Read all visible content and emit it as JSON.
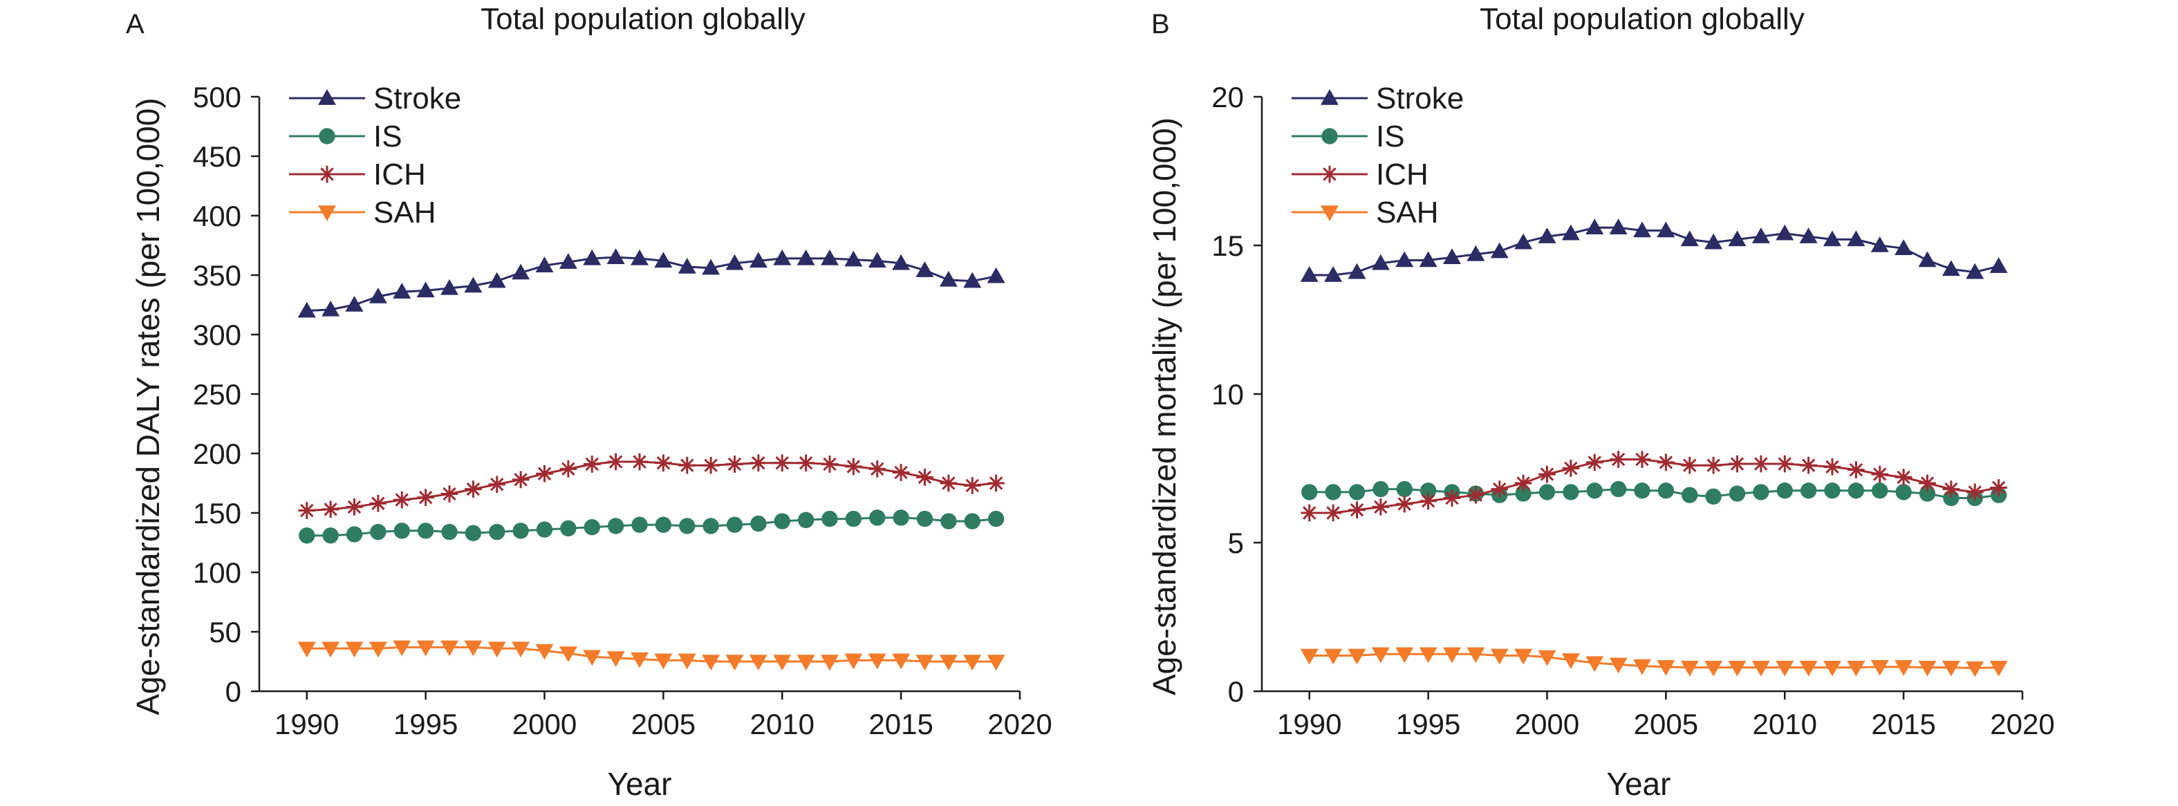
{
  "chart_data": [
    {
      "type": "line",
      "panel_label": "A",
      "title": "Total population globally",
      "xlabel": "Year",
      "ylabel": "Age-standardized DALY rates (per 100,000)",
      "xlim": [
        1988,
        2020
      ],
      "ylim": [
        0,
        500
      ],
      "xticks": [
        1990,
        1995,
        2000,
        2005,
        2010,
        2015,
        2020
      ],
      "yticks": [
        0,
        50,
        100,
        150,
        200,
        250,
        300,
        350,
        400,
        450,
        500
      ],
      "legend_position": "top-left",
      "grid": false,
      "x": [
        1990,
        1991,
        1992,
        1993,
        1994,
        1995,
        1996,
        1997,
        1998,
        1999,
        2000,
        2001,
        2002,
        2003,
        2004,
        2005,
        2006,
        2007,
        2008,
        2009,
        2010,
        2011,
        2012,
        2013,
        2014,
        2015,
        2016,
        2017,
        2018,
        2019
      ],
      "series": [
        {
          "name": "Stroke",
          "values": [
            320,
            321,
            325,
            332,
            336,
            337,
            339,
            341,
            345,
            352,
            358,
            361,
            364,
            365,
            364,
            362,
            357,
            356,
            360,
            362,
            364,
            364,
            364,
            363,
            362,
            360,
            354,
            346,
            345,
            349
          ]
        },
        {
          "name": "IS",
          "values": [
            131,
            131,
            132,
            134,
            135,
            135,
            134,
            133,
            134,
            135,
            136,
            137,
            138,
            139,
            140,
            140,
            139,
            139,
            140,
            141,
            143,
            144,
            145,
            145,
            146,
            146,
            145,
            143,
            143,
            145
          ]
        },
        {
          "name": "ICH",
          "values": [
            152,
            153,
            155,
            158,
            161,
            163,
            166,
            170,
            174,
            178,
            183,
            187,
            191,
            193,
            193,
            192,
            190,
            190,
            191,
            192,
            192,
            192,
            191,
            189,
            187,
            184,
            180,
            175,
            173,
            175
          ]
        },
        {
          "name": "SAH",
          "values": [
            36,
            36,
            36,
            36,
            37,
            37,
            37,
            37,
            36,
            36,
            34,
            32,
            29,
            28,
            27,
            26,
            26,
            25,
            25,
            25,
            25,
            25,
            25,
            26,
            26,
            26,
            25,
            25,
            25,
            25
          ]
        }
      ]
    },
    {
      "type": "line",
      "panel_label": "B",
      "title": "Total population globally",
      "xlabel": "Year",
      "ylabel": "Age-standardized mortality (per 100,000)",
      "xlim": [
        1988,
        2020
      ],
      "ylim": [
        0,
        20
      ],
      "xticks": [
        1990,
        1995,
        2000,
        2005,
        2010,
        2015,
        2020
      ],
      "yticks": [
        0,
        5,
        10,
        15,
        20
      ],
      "legend_position": "top-left",
      "grid": false,
      "x": [
        1990,
        1991,
        1992,
        1993,
        1994,
        1995,
        1996,
        1997,
        1998,
        1999,
        2000,
        2001,
        2002,
        2003,
        2004,
        2005,
        2006,
        2007,
        2008,
        2009,
        2010,
        2011,
        2012,
        2013,
        2014,
        2015,
        2016,
        2017,
        2018,
        2019
      ],
      "series": [
        {
          "name": "Stroke",
          "values": [
            14.0,
            14.0,
            14.1,
            14.4,
            14.5,
            14.5,
            14.6,
            14.7,
            14.8,
            15.1,
            15.3,
            15.4,
            15.6,
            15.6,
            15.5,
            15.5,
            15.2,
            15.1,
            15.2,
            15.3,
            15.4,
            15.3,
            15.2,
            15.2,
            15.0,
            14.9,
            14.5,
            14.2,
            14.1,
            14.3
          ]
        },
        {
          "name": "IS",
          "values": [
            6.7,
            6.7,
            6.7,
            6.8,
            6.8,
            6.75,
            6.7,
            6.65,
            6.6,
            6.65,
            6.7,
            6.7,
            6.75,
            6.8,
            6.75,
            6.75,
            6.6,
            6.55,
            6.65,
            6.7,
            6.75,
            6.75,
            6.75,
            6.75,
            6.75,
            6.7,
            6.65,
            6.5,
            6.5,
            6.6
          ]
        },
        {
          "name": "ICH",
          "values": [
            6.0,
            6.0,
            6.1,
            6.2,
            6.3,
            6.4,
            6.5,
            6.6,
            6.8,
            7.0,
            7.3,
            7.5,
            7.7,
            7.8,
            7.8,
            7.7,
            7.6,
            7.6,
            7.65,
            7.65,
            7.65,
            7.6,
            7.55,
            7.45,
            7.3,
            7.2,
            7.0,
            6.8,
            6.7,
            6.85
          ]
        },
        {
          "name": "SAH",
          "values": [
            1.2,
            1.2,
            1.2,
            1.25,
            1.25,
            1.25,
            1.25,
            1.25,
            1.2,
            1.2,
            1.15,
            1.05,
            0.95,
            0.9,
            0.85,
            0.82,
            0.8,
            0.8,
            0.8,
            0.8,
            0.8,
            0.8,
            0.8,
            0.8,
            0.82,
            0.82,
            0.8,
            0.8,
            0.78,
            0.8
          ]
        }
      ]
    }
  ],
  "series_colors": {
    "Stroke": "#2b2c64",
    "IS": "#2f7d60",
    "ICH": "#a02a2f",
    "SAH": "#f47b2a"
  },
  "series_markers": {
    "Stroke": "triangle-up",
    "IS": "circle",
    "ICH": "asterisk",
    "SAH": "triangle-down"
  }
}
